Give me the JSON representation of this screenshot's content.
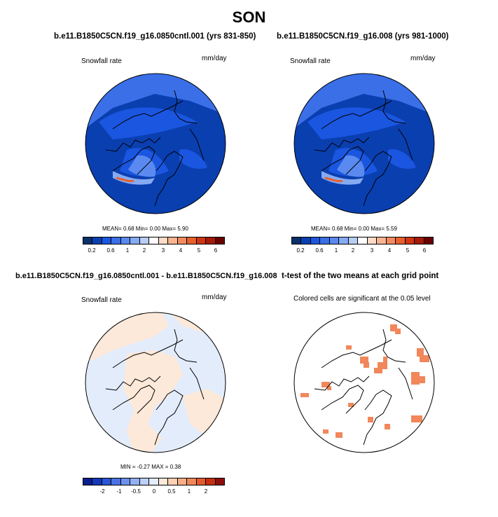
{
  "page_title": "SON",
  "panels": [
    {
      "title": "b.e11.B1850C5CN.f19_g16.0850cntl.001 (yrs 831-850)",
      "left_label": "Snowfall rate",
      "right_label": "mm/day",
      "stats": "MEAN=  0.68  Min=  0.00  Max=  5.90"
    },
    {
      "title": "b.e11.B1850C5CN.f19_g16.008 (yrs 981-1000)",
      "left_label": "Snowfall rate",
      "right_label": "mm/day",
      "stats": "MEAN=  0.68  Min=  0.00  Max=  5.59"
    },
    {
      "title": "b.e11.B1850C5CN.f19_g16.0850cntl.001 - b.e11.B1850C5CN.f19_g16.008",
      "left_label": "Snowfall rate",
      "right_label": "mm/day",
      "stats": "MIN =  -0.27  MAX =  0.38"
    },
    {
      "title": "t-test of the two means at each grid point",
      "left_label": "Colored cells are significant at the 0.05 level",
      "right_label": "",
      "stats": ""
    }
  ],
  "colorbar_abs": {
    "colors": [
      "#08306b",
      "#0a3fb0",
      "#1a56e0",
      "#3a6fe8",
      "#5a8af0",
      "#86aaf2",
      "#b8cdf5",
      "#ffffff",
      "#fcdcc8",
      "#f9b592",
      "#f38b62",
      "#e8602e",
      "#cf3512",
      "#a51a08",
      "#6b0000"
    ],
    "ticks": [
      "0.2",
      "0.6",
      "1",
      "2",
      "3",
      "4",
      "5",
      "6"
    ]
  },
  "colorbar_diff": {
    "colors": [
      "#0a1f8f",
      "#1437b8",
      "#2a55d6",
      "#4a72e4",
      "#6d91ee",
      "#93b0f3",
      "#bcd0f7",
      "#e3ecfb",
      "#fde9d9",
      "#fbd0b3",
      "#f8ae87",
      "#f1875b",
      "#e35a2e",
      "#c6300f",
      "#8e0e0e"
    ],
    "ticks": [
      "-2",
      "-1",
      "-0.5",
      "0",
      "0.5",
      "1",
      "2"
    ]
  }
}
